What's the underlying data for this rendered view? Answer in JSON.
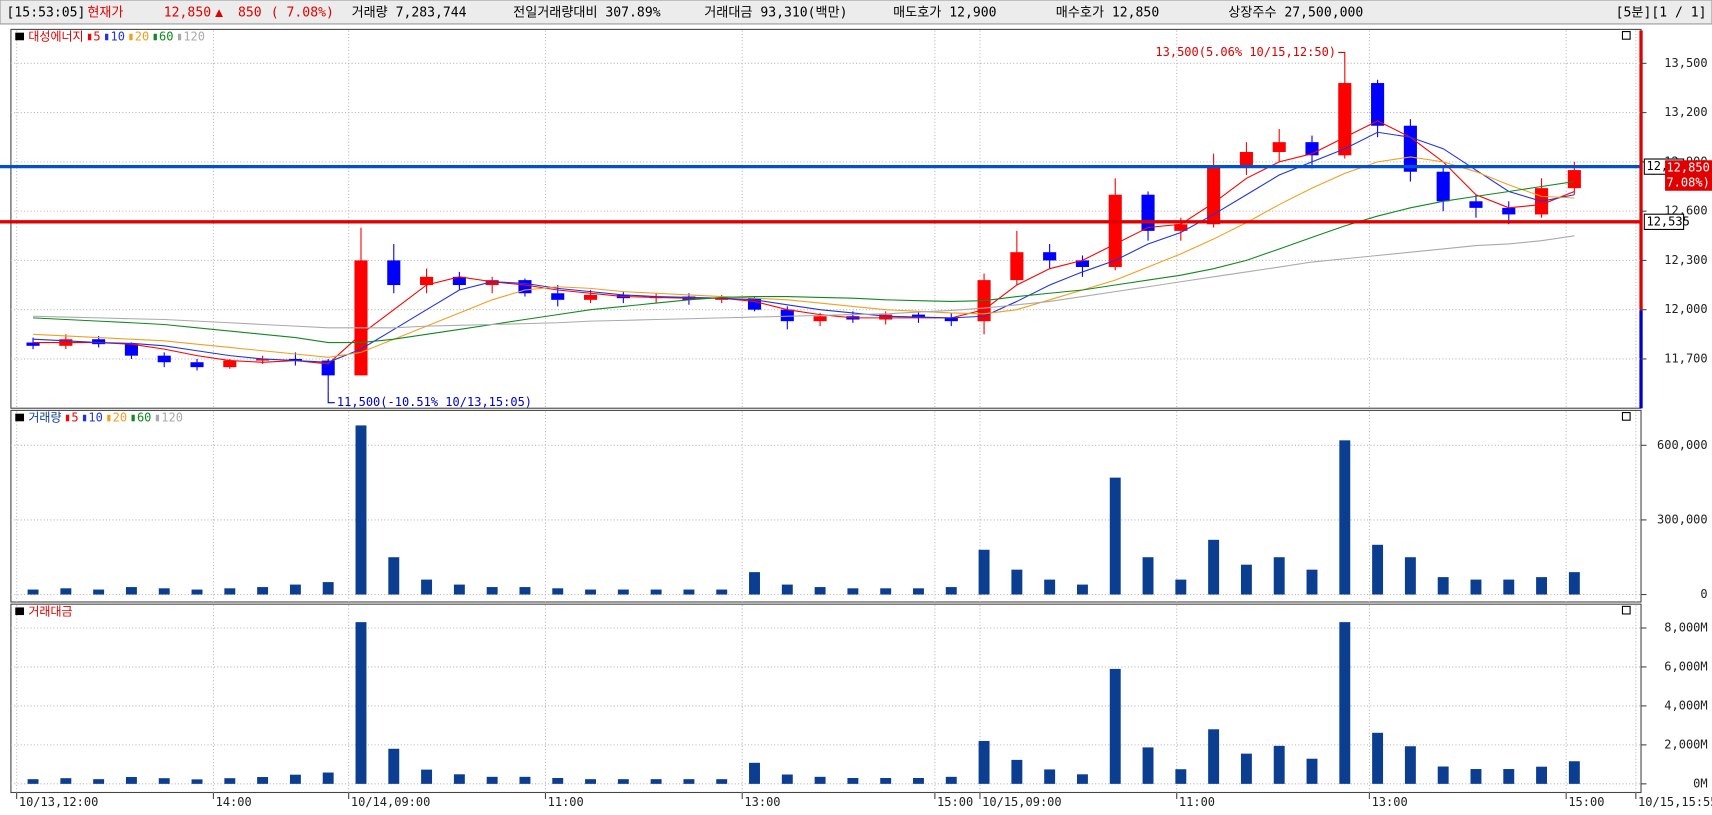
{
  "header": {
    "time": "[15:53:05]",
    "label": "현재가",
    "price": "12,850",
    "arrow": "▲",
    "change": "850",
    "rate": "( 7.08%)",
    "stats": [
      "거래량 7,283,744",
      "전일거래량대비 307.89%",
      "거래대금 93,310(백만)",
      "매도호가 12,900",
      "매수호가 12,850",
      "상장주수 27,500,000"
    ],
    "period": "[5분][1 / 1]"
  },
  "chart_data": [
    {
      "type": "candlestick",
      "title": "대성에너지",
      "x": [
        2,
        6,
        10,
        14,
        18,
        22,
        26,
        30,
        34,
        38,
        42,
        46,
        50,
        54,
        58,
        62,
        66,
        70,
        74,
        78,
        82,
        86,
        90,
        94,
        98,
        102,
        106,
        110,
        114,
        118,
        122,
        126,
        130,
        134,
        138,
        142,
        146,
        150,
        154,
        158,
        162,
        166,
        170,
        174,
        178,
        182,
        186,
        190
      ],
      "open": [
        11800,
        11780,
        11820,
        11790,
        11720,
        11680,
        11650,
        11690,
        11700,
        11690,
        11600,
        12300,
        12150,
        12200,
        12150,
        12180,
        12100,
        12060,
        12090,
        12070,
        12080,
        12060,
        12070,
        12000,
        11930,
        11960,
        11940,
        11970,
        11950,
        11930,
        12180,
        12350,
        12300,
        12260,
        12700,
        12480,
        12520,
        12880,
        12960,
        13020,
        12940,
        13380,
        13120,
        12840,
        12660,
        12620,
        12580,
        12740
      ],
      "high": [
        11830,
        11850,
        11840,
        11800,
        11740,
        11700,
        11700,
        11720,
        11740,
        11700,
        12500,
        12400,
        12250,
        12230,
        12200,
        12190,
        12150,
        12120,
        12110,
        12100,
        12100,
        12090,
        12080,
        12020,
        11980,
        11990,
        11990,
        11990,
        11980,
        12220,
        12480,
        12400,
        12330,
        12800,
        12720,
        12560,
        12950,
        13020,
        13100,
        13060,
        13500,
        13400,
        13160,
        12880,
        12700,
        12660,
        12800,
        12900
      ],
      "low": [
        11760,
        11760,
        11770,
        11700,
        11650,
        11630,
        11640,
        11670,
        11660,
        11500,
        11600,
        12100,
        12100,
        12120,
        12100,
        12080,
        12020,
        12040,
        12040,
        12040,
        12030,
        12040,
        11990,
        11880,
        11900,
        11920,
        11910,
        11920,
        11900,
        11850,
        12150,
        12250,
        12200,
        12240,
        12420,
        12420,
        12500,
        12820,
        12900,
        12860,
        12920,
        13050,
        12780,
        12600,
        12560,
        12520,
        12560,
        12700
      ],
      "close": [
        11780,
        11820,
        11790,
        11720,
        11680,
        11650,
        11690,
        11700,
        11690,
        11600,
        12300,
        12150,
        12200,
        12150,
        12180,
        12100,
        12060,
        12090,
        12070,
        12080,
        12060,
        12070,
        12000,
        11930,
        11960,
        11940,
        11970,
        11950,
        11930,
        12180,
        12350,
        12300,
        12260,
        12700,
        12480,
        12520,
        12880,
        12960,
        13020,
        12940,
        13380,
        13120,
        12840,
        12660,
        12620,
        12580,
        12740,
        12850
      ],
      "up_color": "#ff0000",
      "down_color": "#0000ff",
      "ma": [
        {
          "name": "5",
          "color": "#ff0000",
          "values": [
            11800,
            11800,
            11800,
            11790,
            11760,
            11720,
            11690,
            11680,
            11690,
            11670,
            11850,
            12000,
            12150,
            12200,
            12170,
            12150,
            12120,
            12100,
            12080,
            12075,
            12070,
            12070,
            12050,
            12000,
            11970,
            11950,
            11950,
            11950,
            11950,
            12000,
            12150,
            12250,
            12300,
            12400,
            12500,
            12520,
            12650,
            12800,
            12900,
            12950,
            13050,
            13150,
            13050,
            12900,
            12700,
            12620,
            12640,
            12720
          ]
        },
        {
          "name": "10",
          "color": "#2233dd",
          "values": [
            11820,
            11810,
            11800,
            11795,
            11780,
            11750,
            11720,
            11700,
            11690,
            11680,
            11760,
            11880,
            12000,
            12120,
            12170,
            12160,
            12130,
            12110,
            12090,
            12080,
            12075,
            12070,
            12060,
            12030,
            12000,
            11980,
            11960,
            11955,
            11950,
            11960,
            12050,
            12150,
            12230,
            12300,
            12400,
            12470,
            12580,
            12700,
            12820,
            12900,
            12980,
            13080,
            13050,
            12980,
            12850,
            12720,
            12660,
            12700
          ]
        },
        {
          "name": "20",
          "color": "#f0a020",
          "values": [
            11850,
            11840,
            11830,
            11820,
            11810,
            11790,
            11770,
            11750,
            11730,
            11710,
            11740,
            11820,
            11900,
            11980,
            12060,
            12120,
            12140,
            12130,
            12110,
            12100,
            12090,
            12080,
            12070,
            12060,
            12040,
            12020,
            12000,
            11990,
            11980,
            11975,
            12000,
            12060,
            12120,
            12180,
            12260,
            12340,
            12430,
            12530,
            12640,
            12740,
            12830,
            12900,
            12930,
            12900,
            12840,
            12760,
            12690,
            12680
          ]
        },
        {
          "name": "60",
          "color": "#118822",
          "values": [
            11950,
            11940,
            11930,
            11920,
            11910,
            11890,
            11870,
            11850,
            11830,
            11800,
            11800,
            11820,
            11850,
            11880,
            11910,
            11940,
            11970,
            12000,
            12020,
            12040,
            12060,
            12075,
            12080,
            12080,
            12075,
            12070,
            12060,
            12055,
            12050,
            12055,
            12080,
            12100,
            12120,
            12150,
            12180,
            12210,
            12250,
            12300,
            12370,
            12440,
            12510,
            12570,
            12620,
            12660,
            12690,
            12720,
            12750,
            12780
          ]
        },
        {
          "name": "120",
          "color": "#aaaaaa",
          "values": [
            11960,
            11955,
            11950,
            11945,
            11940,
            11930,
            11920,
            11910,
            11900,
            11890,
            11890,
            11890,
            11900,
            11905,
            11910,
            11915,
            11920,
            11930,
            11935,
            11940,
            11945,
            11950,
            11955,
            11960,
            11965,
            11970,
            11975,
            11985,
            11995,
            12010,
            12030,
            12050,
            12080,
            12110,
            12140,
            12170,
            12200,
            12230,
            12260,
            12290,
            12310,
            12330,
            12350,
            12370,
            12390,
            12400,
            12420,
            12450
          ]
        }
      ],
      "lines": [
        {
          "value": 12871,
          "label": "12,871",
          "color": "#0050d0"
        },
        {
          "value": 12535,
          "label": "12,535",
          "color": "#e00000"
        }
      ],
      "last_label": "12,850",
      "last_change": "(7.08%)",
      "annotations": [
        {
          "text": "13,500(5.06% 10/15,12:50)",
          "x": 162,
          "y": 13500,
          "color": "#e00000"
        },
        {
          "text": "11,500(-10.51% 10/13,15:05)",
          "x": 38,
          "y": 11500,
          "color": "#0000cc"
        }
      ],
      "xlim": [
        -0.7,
        198
      ],
      "ylim": [
        11400,
        13700
      ],
      "xticks": [
        {
          "value": 0,
          "label": "10/13,12:00"
        },
        {
          "value": 24,
          "label": "14:00"
        },
        {
          "value": 40.5,
          "label": "10/14,09:00"
        },
        {
          "value": 64.5,
          "label": "11:00"
        },
        {
          "value": 88.5,
          "label": "13:00"
        },
        {
          "value": 112,
          "label": "15:00"
        },
        {
          "value": 117.5,
          "label": "10/15,09:00"
        },
        {
          "value": 141.5,
          "label": "11:00"
        },
        {
          "value": 165,
          "label": "13:00"
        },
        {
          "value": 189,
          "label": "15:00"
        },
        {
          "value": 197.5,
          "label": "10/15,15:55"
        }
      ],
      "yticks": [
        {
          "value": 11700,
          "label": "11,700"
        },
        {
          "value": 12000,
          "label": "12,000"
        },
        {
          "value": 12300,
          "label": "12,300"
        },
        {
          "value": 12600,
          "label": "12,600"
        },
        {
          "value": 12900,
          "label": "12,900"
        },
        {
          "value": 13200,
          "label": "13,200"
        },
        {
          "value": 13500,
          "label": "13,500"
        }
      ],
      "grid": true
    },
    {
      "type": "bar",
      "title": "거래량",
      "color": "#0b3d91",
      "legend": [
        {
          "name": "5",
          "color": "#ff0000"
        },
        {
          "name": "10",
          "color": "#2233dd"
        },
        {
          "name": "20",
          "color": "#f0a020"
        },
        {
          "name": "60",
          "color": "#118822"
        },
        {
          "name": "120",
          "color": "#aaaaaa"
        }
      ],
      "values": [
        20000,
        25000,
        20000,
        30000,
        25000,
        20000,
        25000,
        30000,
        40000,
        50000,
        680000,
        150000,
        60000,
        40000,
        30000,
        30000,
        25000,
        20000,
        20000,
        20000,
        20000,
        20000,
        90000,
        40000,
        30000,
        25000,
        25000,
        25000,
        30000,
        180000,
        100000,
        60000,
        40000,
        470000,
        150000,
        60000,
        220000,
        120000,
        150000,
        100000,
        620000,
        200000,
        150000,
        70000,
        60000,
        60000,
        70000,
        90000
      ],
      "ylim": [
        -30000,
        736000
      ],
      "yticks": [
        0,
        {
          "value": 300000,
          "label": "300,000"
        },
        {
          "value": 600000,
          "label": "600,000"
        }
      ],
      "grid": true
    },
    {
      "type": "bar",
      "title": "거래대금",
      "color": "#0b3d91",
      "values": [
        240,
        290,
        240,
        350,
        290,
        230,
        290,
        350,
        470,
        580,
        8300,
        1800,
        730,
        490,
        360,
        360,
        300,
        240,
        240,
        240,
        240,
        240,
        1080,
        480,
        360,
        300,
        300,
        300,
        360,
        2200,
        1230,
        740,
        490,
        5900,
        1870,
        750,
        2800,
        1550,
        1950,
        1290,
        8300,
        2620,
        1930,
        890,
        760,
        760,
        880,
        1160
      ],
      "ylim": [
        -444,
        9167
      ],
      "yticks": [
        {
          "value": 0,
          "label": "0M"
        },
        {
          "value": 2000,
          "label": "2,000M"
        },
        {
          "value": 4000,
          "label": "4,000M"
        },
        {
          "value": 6000,
          "label": "6,000M"
        },
        {
          "value": 8000,
          "label": "8,000M"
        }
      ],
      "grid": true
    }
  ]
}
